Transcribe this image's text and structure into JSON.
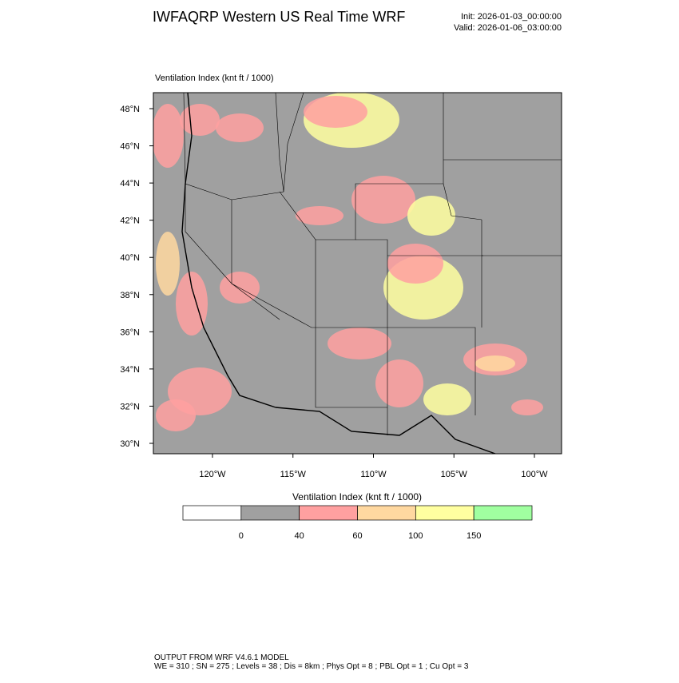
{
  "header": {
    "title": "IWFAQRP Western US Real Time WRF",
    "init": "Init: 2026-01-03_00:00:00",
    "valid": "Valid: 2026-01-06_03:00:00"
  },
  "map": {
    "field_label": "Ventilation Index   (knt ft / 1000)",
    "lat_ticks": [
      {
        "value": 48,
        "label": "48°N"
      },
      {
        "value": 46,
        "label": "46°N"
      },
      {
        "value": 44,
        "label": "44°N"
      },
      {
        "value": 42,
        "label": "42°N"
      },
      {
        "value": 40,
        "label": "40°N"
      },
      {
        "value": 38,
        "label": "38°N"
      },
      {
        "value": 36,
        "label": "36°N"
      },
      {
        "value": 34,
        "label": "34°N"
      },
      {
        "value": 32,
        "label": "32°N"
      },
      {
        "value": 30,
        "label": "30°N"
      }
    ],
    "lon_ticks": [
      {
        "value": -120,
        "label": "120°W"
      },
      {
        "value": -115,
        "label": "115°W"
      },
      {
        "value": -110,
        "label": "110°W"
      },
      {
        "value": -105,
        "label": "105°W"
      },
      {
        "value": -100,
        "label": "100°W"
      }
    ]
  },
  "colorbar": {
    "title": "Ventilation Index   (knt ft / 1000)",
    "levels": [
      0,
      40,
      60,
      100,
      150
    ],
    "colors": [
      "#ffffff",
      "#a0a0a0",
      "#ffa0a0",
      "#ffd8a0",
      "#ffffa0",
      "#a0ffa0"
    ]
  },
  "footer": {
    "line1": "OUTPUT FROM WRF V4.6.1 MODEL",
    "line2": "WE = 310 ; SN = 275 ; Levels = 38 ; Dis = 8km ; Phys Opt = 8 ; PBL Opt = 1 ; Cu Opt = 3"
  }
}
